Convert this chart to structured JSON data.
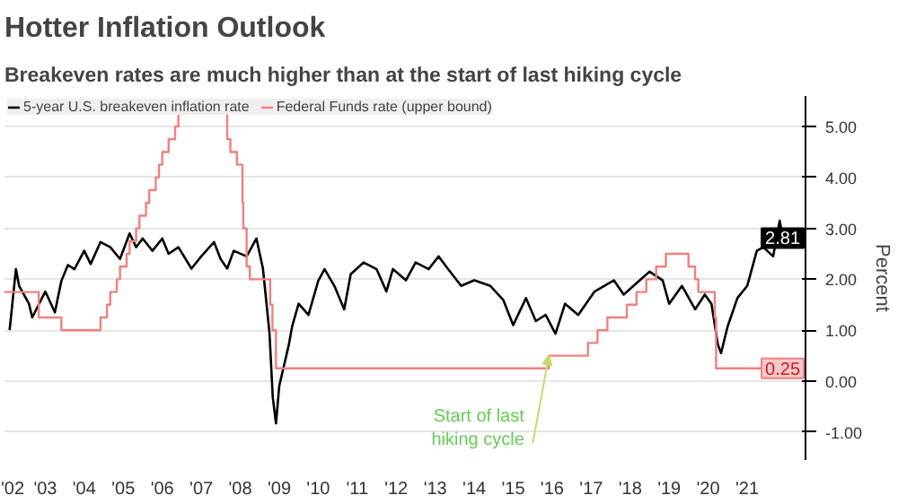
{
  "chart_data": {
    "type": "line",
    "title": "Hotter Inflation Outlook",
    "subtitle": "Breakeven rates are much higher than at the start of last hiking cycle",
    "ylabel": "Percent",
    "xlim": [
      "2001-12-15",
      "2022-07-01"
    ],
    "ylim": [
      -1.55,
      5.6
    ],
    "xticks": [
      {
        "value": "2002",
        "label": "'02"
      },
      {
        "value": "2003",
        "label": "'03"
      },
      {
        "value": "2004",
        "label": "'04"
      },
      {
        "value": "2005",
        "label": "'05"
      },
      {
        "value": "2006",
        "label": "'06"
      },
      {
        "value": "2007",
        "label": "'07"
      },
      {
        "value": "2008",
        "label": "'08"
      },
      {
        "value": "2009",
        "label": "'09"
      },
      {
        "value": "2010",
        "label": "'10"
      },
      {
        "value": "2011",
        "label": "'11"
      },
      {
        "value": "2012",
        "label": "'12"
      },
      {
        "value": "2013",
        "label": "'13"
      },
      {
        "value": "2014",
        "label": "'14"
      },
      {
        "value": "2015",
        "label": "'15"
      },
      {
        "value": "2016",
        "label": "'16"
      },
      {
        "value": "2017",
        "label": "'17"
      },
      {
        "value": "2018",
        "label": "'18"
      },
      {
        "value": "2019",
        "label": "'19"
      },
      {
        "value": "2020",
        "label": "'20"
      },
      {
        "value": "2021",
        "label": "'21"
      }
    ],
    "yticks": [
      {
        "value": -1,
        "label": "-1.00"
      },
      {
        "value": 0,
        "label": "0.00"
      },
      {
        "value": 1,
        "label": "1.00"
      },
      {
        "value": 2,
        "label": "2.00"
      },
      {
        "value": 3,
        "label": "3.00"
      },
      {
        "value": 4,
        "label": "4.00"
      },
      {
        "value": 5,
        "label": "5.00"
      }
    ],
    "grid": "y",
    "legend": "top left",
    "series": [
      {
        "name": "5-year U.S. breakeven inflation rate",
        "color": "#000000",
        "x": [
          "2002-02",
          "2002-04",
          "2002-05",
          "2002-08",
          "2002-09",
          "2003-01",
          "2003-04",
          "2003-06",
          "2003-08",
          "2003-10",
          "2004-01",
          "2004-03",
          "2004-06",
          "2004-09",
          "2004-12",
          "2005-03",
          "2005-05",
          "2005-07",
          "2005-10",
          "2006-01",
          "2006-03",
          "2006-06",
          "2006-10",
          "2007-01",
          "2007-05",
          "2007-07",
          "2007-09",
          "2007-11",
          "2008-03",
          "2008-06",
          "2008-08",
          "2008-10",
          "2008-11",
          "2008-12",
          "2009-01",
          "2009-04",
          "2009-05",
          "2009-07",
          "2009-10",
          "2010-01",
          "2010-03",
          "2010-06",
          "2010-09",
          "2010-11",
          "2011-03",
          "2011-07",
          "2011-10",
          "2011-12",
          "2012-04",
          "2012-07",
          "2012-11",
          "2013-02",
          "2013-05",
          "2013-09",
          "2014-01",
          "2014-06",
          "2014-10",
          "2015-01",
          "2015-05",
          "2015-08",
          "2015-11",
          "2016-02",
          "2016-05",
          "2016-09",
          "2017-02",
          "2017-08",
          "2017-11",
          "2018-04",
          "2018-07",
          "2018-11",
          "2019-01",
          "2019-05",
          "2019-09",
          "2019-12",
          "2020-02",
          "2020-04",
          "2020-05",
          "2020-07",
          "2020-10",
          "2021-01",
          "2021-04",
          "2021-06",
          "2021-09",
          "2021-11",
          "2021-12"
        ],
        "values": [
          1.0,
          2.2,
          1.87,
          1.52,
          1.25,
          1.76,
          1.35,
          1.97,
          2.28,
          2.2,
          2.56,
          2.3,
          2.73,
          2.63,
          2.4,
          2.9,
          2.63,
          2.8,
          2.56,
          2.8,
          2.5,
          2.63,
          2.21,
          2.45,
          2.73,
          2.4,
          2.21,
          2.56,
          2.45,
          2.8,
          2.21,
          0.95,
          -0.32,
          -0.83,
          -0.09,
          0.72,
          1.07,
          1.52,
          1.3,
          1.97,
          2.2,
          1.87,
          1.41,
          2.1,
          2.33,
          2.2,
          1.76,
          2.2,
          1.98,
          2.33,
          2.2,
          2.45,
          2.2,
          1.87,
          1.98,
          1.87,
          1.59,
          1.1,
          1.63,
          1.18,
          1.3,
          0.93,
          1.52,
          1.3,
          1.76,
          1.98,
          1.7,
          1.98,
          2.15,
          1.98,
          1.52,
          1.87,
          1.41,
          1.7,
          1.52,
          0.72,
          0.55,
          1.07,
          1.63,
          1.87,
          2.56,
          2.63,
          2.45,
          3.15,
          2.81
        ],
        "value_labels": [
          null,
          null,
          null,
          null,
          null,
          null,
          null,
          null,
          null,
          null,
          null,
          null,
          null,
          null,
          null,
          null,
          null,
          null,
          null,
          null,
          null,
          null,
          null,
          null,
          null,
          null,
          null,
          null,
          null,
          null,
          null,
          null,
          null,
          null,
          null,
          null,
          null,
          null,
          null,
          null,
          null,
          null,
          null,
          null,
          null,
          null,
          null,
          null,
          null,
          null,
          null,
          null,
          null,
          null,
          null,
          null,
          null,
          null,
          null,
          null,
          null,
          null,
          null,
          null,
          null,
          null,
          null,
          null,
          null,
          null,
          null,
          null,
          null,
          null,
          null,
          null,
          null,
          null,
          null,
          null,
          null,
          null,
          null,
          null,
          "2.81"
        ]
      },
      {
        "name": "Federal Funds rate (upper bound)",
        "color": "#f08080",
        "type": "step",
        "x": [
          "2001-12-15",
          "2002-11",
          "2003-06",
          "2004-06",
          "2004-08",
          "2004-09",
          "2004-11",
          "2004-12",
          "2005-02",
          "2005-03",
          "2005-05",
          "2005-06",
          "2005-08",
          "2005-09",
          "2005-11",
          "2005-12",
          "2006-01",
          "2006-03",
          "2006-05",
          "2006-06",
          "2007-09",
          "2007-10",
          "2007-12",
          "2008-01-22",
          "2008-01-30",
          "2008-03",
          "2008-04",
          "2008-10-08",
          "2008-10-29",
          "2008-12",
          "2015-12",
          "2016-12",
          "2017-03",
          "2017-06",
          "2017-12",
          "2018-03",
          "2018-06",
          "2018-09",
          "2018-12",
          "2019-07",
          "2019-09",
          "2019-10",
          "2020-03-03",
          "2020-03-15",
          "2021-12"
        ],
        "values": [
          1.75,
          1.25,
          1.0,
          1.25,
          1.5,
          1.75,
          2.0,
          2.25,
          2.5,
          2.75,
          3.0,
          3.25,
          3.5,
          3.75,
          4.0,
          4.25,
          4.5,
          4.75,
          5.0,
          5.25,
          4.75,
          4.5,
          4.25,
          3.5,
          3.0,
          2.25,
          2.0,
          1.5,
          1.0,
          0.25,
          0.5,
          0.75,
          1.0,
          1.25,
          1.5,
          1.75,
          2.0,
          2.25,
          2.5,
          2.25,
          2.0,
          1.75,
          1.25,
          0.25,
          0.25
        ],
        "value_labels": [
          null,
          null,
          null,
          null,
          null,
          null,
          null,
          null,
          null,
          null,
          null,
          null,
          null,
          null,
          null,
          null,
          null,
          null,
          null,
          null,
          null,
          null,
          null,
          null,
          null,
          null,
          null,
          null,
          null,
          null,
          null,
          null,
          null,
          null,
          null,
          null,
          null,
          null,
          null,
          null,
          null,
          null,
          null,
          null,
          "0.25"
        ]
      }
    ],
    "annotations": [
      {
        "text": "Start of last\nhiking cycle",
        "x": "2015-12",
        "y": 0.5
      }
    ]
  }
}
